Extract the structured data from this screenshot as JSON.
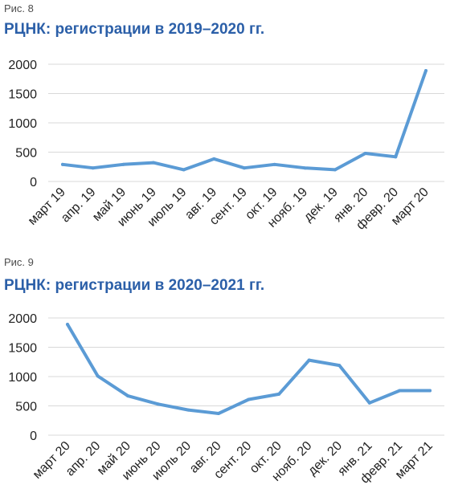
{
  "figures": [
    {
      "label": "Рис. 8",
      "title": "РЦНК: регистрации в 2019–2020 гг."
    },
    {
      "label": "Рис. 9",
      "title": "РЦНК: регистрации в 2020–2021 гг."
    }
  ],
  "chart_data": [
    {
      "type": "line",
      "title": "РЦНК: регистрации в 2019–2020 гг.",
      "xlabel": "",
      "ylabel": "",
      "ylim": [
        0,
        2000
      ],
      "yticks": [
        0,
        500,
        1000,
        1500,
        2000
      ],
      "grid": true,
      "color": "#5b9bd5",
      "categories": [
        "март 19",
        "апр. 19",
        "май 19",
        "июнь 19",
        "июль 19",
        "авг. 19",
        "сент. 19",
        "окт. 19",
        "нояб. 19",
        "дек. 19",
        "янв. 20",
        "февр. 20",
        "март 20"
      ],
      "values": [
        290,
        230,
        290,
        320,
        200,
        385,
        230,
        290,
        230,
        200,
        480,
        420,
        1890
      ]
    },
    {
      "type": "line",
      "title": "РЦНК: регистрации в 2020–2021 гг.",
      "xlabel": "",
      "ylabel": "",
      "ylim": [
        0,
        2000
      ],
      "yticks": [
        0,
        500,
        1000,
        1500,
        2000
      ],
      "grid": true,
      "color": "#5b9bd5",
      "categories": [
        "март 20",
        "апр. 20",
        "май 20",
        "июнь 20",
        "июль 20",
        "авг. 20",
        "сент. 20",
        "окт. 20",
        "нояб. 20",
        "дек. 20",
        "янв. 21",
        "февр. 21",
        "март 21"
      ],
      "values": [
        1890,
        1010,
        670,
        530,
        430,
        370,
        610,
        700,
        1280,
        1190,
        550,
        760,
        760
      ]
    }
  ]
}
